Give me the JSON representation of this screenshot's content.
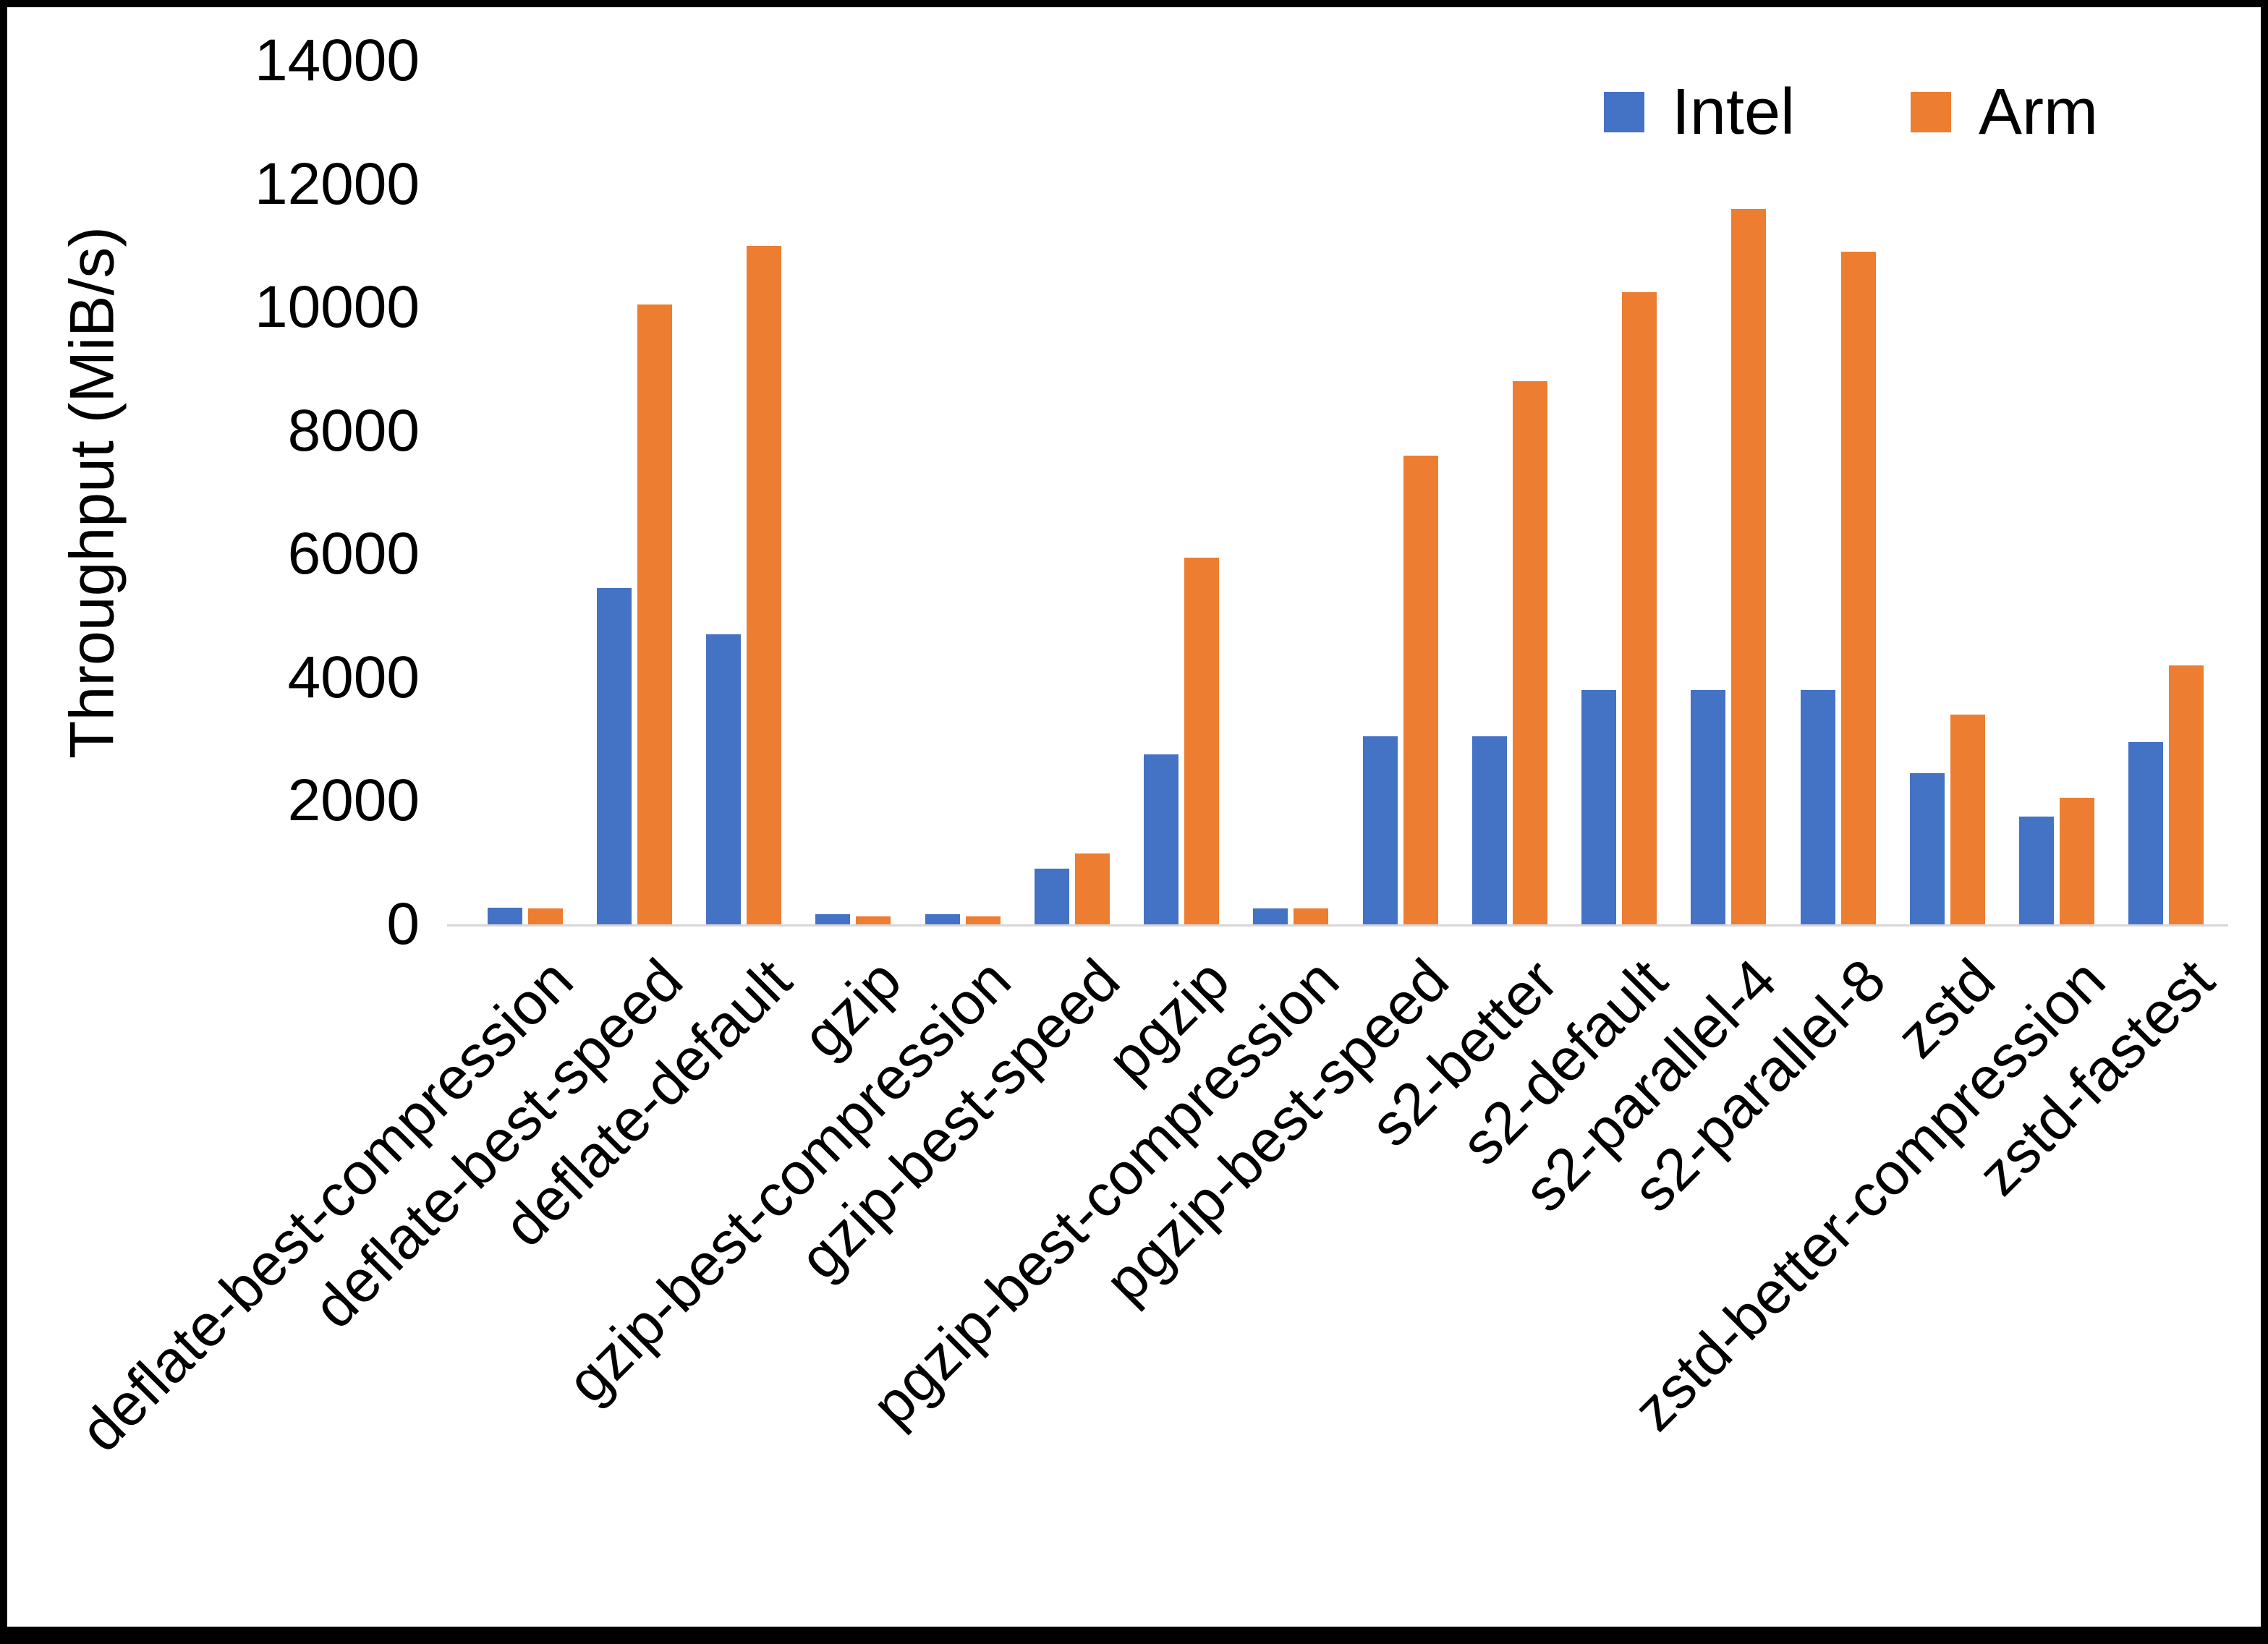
{
  "chart_data": {
    "type": "bar",
    "ylabel": "Throughput (MiB/s)",
    "xlabel": "",
    "ylim": [
      0,
      14000
    ],
    "ytick_step": 2000,
    "grid": false,
    "legend_position": "top-right",
    "categories": [
      "deflate-best-compression",
      "deflate-best-speed",
      "deflate-default",
      "gzip",
      "gzip-best-compression",
      "gzip-best-speed",
      "pgzip",
      "pgzip-best-compression",
      "pgzip-best-speed",
      "s2-better",
      "s2-default",
      "s2-parallel-4",
      "s2-parallel-8",
      "zstd",
      "zstd-better-compression",
      "zstd-fastest"
    ],
    "series": [
      {
        "name": "Intel",
        "color": "#4472C4",
        "values": [
          270,
          5450,
          4700,
          160,
          160,
          900,
          2750,
          260,
          3050,
          3050,
          3800,
          3800,
          3800,
          2450,
          1750,
          2950
        ]
      },
      {
        "name": "Arm",
        "color": "#ED7D31",
        "values": [
          260,
          10050,
          11000,
          130,
          130,
          1150,
          5950,
          260,
          7600,
          8800,
          10250,
          11600,
          10900,
          3400,
          2050,
          4200
        ]
      }
    ]
  }
}
